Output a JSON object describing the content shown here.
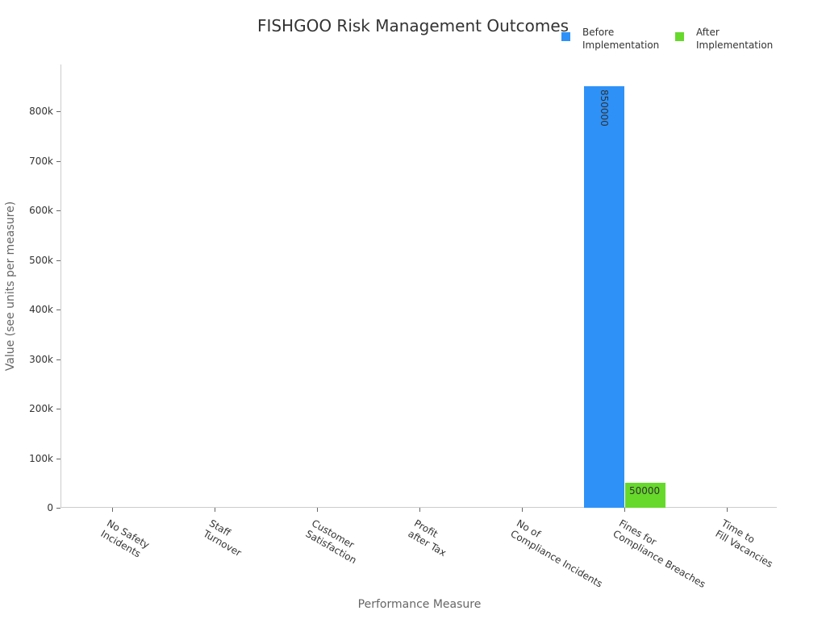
{
  "chart_data": {
    "type": "bar",
    "title": "FISHGOO Risk Management Outcomes",
    "xlabel": "Performance Measure",
    "ylabel": "Value (see units per measure)",
    "categories": [
      "No Safety\nIncidents",
      "Staff\nTurnover",
      "Customer\nSatisfaction",
      "Profit\nafter Tax",
      "No of\nCompliance Incidents",
      "Fines for\nCompliance Breaches",
      "Time to\nFill Vacancies"
    ],
    "series": [
      {
        "name": "Before Implementation",
        "color": "#2e91f8",
        "values": [
          0,
          0,
          0,
          0,
          0,
          850000,
          0
        ]
      },
      {
        "name": "After Implementation",
        "color": "#66d92b",
        "values": [
          0,
          0,
          0,
          0,
          0,
          50000,
          0
        ]
      }
    ],
    "data_labels": [
      {
        "category": "Fines for\nCompliance Breaches",
        "series": "Before Implementation",
        "text": "850000"
      },
      {
        "category": "Fines for\nCompliance Breaches",
        "series": "After Implementation",
        "text": "50000"
      }
    ],
    "yticks": [
      "0",
      "100k",
      "200k",
      "300k",
      "400k",
      "500k",
      "600k",
      "700k",
      "800k"
    ],
    "ytick_values": [
      0,
      100000,
      200000,
      300000,
      400000,
      500000,
      600000,
      700000,
      800000
    ],
    "ylim": [
      0,
      894000
    ],
    "grid": false,
    "legend_position": "top-right"
  },
  "legend": {
    "before": "Before\nImplementation",
    "after": "After\nImplementation"
  }
}
